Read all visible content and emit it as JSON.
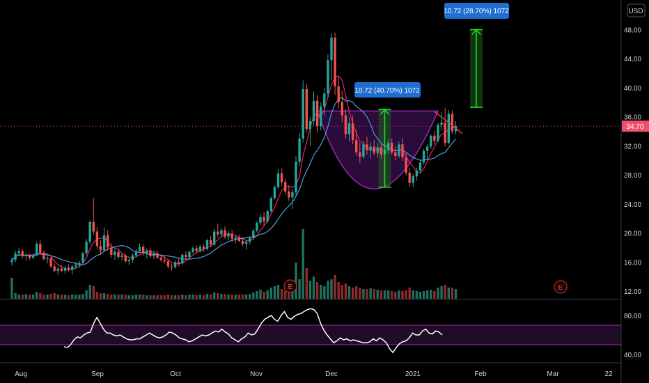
{
  "price_scale": {
    "currency": "USD",
    "ticks": [
      "12.00",
      "16.00",
      "20.00",
      "24.00",
      "28.00",
      "32.00",
      "36.00",
      "40.00",
      "44.00",
      "48.00"
    ]
  },
  "last_price": "34.70",
  "rsi_scale": {
    "ticks": [
      "40.00",
      "80.00"
    ]
  },
  "time_labels": [
    "Aug",
    "Sep",
    "Oct",
    "Nov",
    "Dec",
    "2021",
    "Feb",
    "Mar",
    "22"
  ],
  "measure_1": "10.72 (40.70%) 1072",
  "measure_2": "10.72 (28.70%) 1072",
  "earnings_label": "E",
  "colors": {
    "up": "#26a69a",
    "down": "#ef5350",
    "ma_fast": "#e91e63",
    "ma_slow": "#4aa3df",
    "rsi": "#ffffff",
    "rsi_band": "#9c27b0",
    "badge": "#1e6fd0",
    "arrow": "#19e619",
    "cup": "#7b1fa2",
    "label_bg": "#f0506e"
  },
  "chart_data": [
    {
      "type": "candlestick",
      "ylim": [
        11,
        50
      ],
      "ohlc": [
        [
          16.0,
          16.6,
          15.5,
          16.3
        ],
        [
          16.3,
          17.6,
          16.0,
          17.2
        ],
        [
          17.2,
          18.0,
          16.8,
          17.5
        ],
        [
          17.5,
          17.8,
          16.5,
          16.8
        ],
        [
          16.8,
          17.3,
          16.2,
          16.9
        ],
        [
          16.9,
          17.1,
          16.3,
          16.6
        ],
        [
          16.6,
          17.2,
          16.4,
          16.9
        ],
        [
          16.9,
          18.8,
          16.8,
          18.5
        ],
        [
          18.5,
          19.0,
          17.0,
          17.3
        ],
        [
          17.3,
          17.6,
          16.2,
          16.4
        ],
        [
          16.4,
          17.0,
          15.8,
          16.5
        ],
        [
          16.5,
          16.7,
          15.2,
          15.4
        ],
        [
          15.4,
          15.8,
          14.6,
          14.8
        ],
        [
          14.8,
          15.4,
          14.2,
          15.1
        ],
        [
          15.1,
          15.6,
          14.6,
          14.8
        ],
        [
          14.8,
          15.5,
          14.4,
          15.2
        ],
        [
          15.2,
          15.7,
          14.7,
          14.9
        ],
        [
          14.9,
          15.6,
          14.3,
          15.4
        ],
        [
          15.4,
          16.0,
          15.0,
          15.6
        ],
        [
          15.6,
          16.2,
          15.2,
          15.9
        ],
        [
          15.9,
          17.4,
          15.8,
          17.2
        ],
        [
          17.2,
          19.2,
          16.9,
          18.8
        ],
        [
          18.8,
          21.8,
          18.4,
          21.5
        ],
        [
          21.5,
          24.8,
          19.8,
          20.2
        ],
        [
          20.2,
          20.8,
          17.8,
          18.2
        ],
        [
          18.2,
          19.0,
          17.0,
          17.6
        ],
        [
          17.6,
          20.8,
          17.4,
          19.7
        ],
        [
          19.7,
          20.4,
          17.6,
          18.0
        ],
        [
          18.0,
          18.6,
          16.6,
          17.0
        ],
        [
          17.0,
          17.8,
          16.3,
          17.4
        ],
        [
          17.4,
          17.7,
          16.4,
          16.7
        ],
        [
          16.7,
          17.3,
          16.2,
          16.9
        ],
        [
          16.9,
          17.2,
          15.9,
          16.1
        ],
        [
          16.1,
          16.6,
          15.6,
          16.3
        ],
        [
          16.3,
          17.2,
          15.9,
          16.9
        ],
        [
          16.9,
          17.8,
          16.6,
          17.5
        ],
        [
          17.5,
          18.6,
          17.2,
          18.1
        ],
        [
          18.1,
          18.5,
          16.9,
          17.2
        ],
        [
          17.2,
          17.9,
          16.5,
          17.6
        ],
        [
          17.6,
          17.9,
          16.6,
          16.8
        ],
        [
          16.8,
          17.5,
          16.4,
          17.2
        ],
        [
          17.2,
          17.6,
          16.4,
          16.6
        ],
        [
          16.6,
          17.0,
          16.0,
          16.3
        ],
        [
          16.3,
          16.8,
          15.8,
          16.1
        ],
        [
          16.1,
          16.4,
          15.1,
          15.4
        ],
        [
          15.4,
          15.8,
          14.8,
          15.3
        ],
        [
          15.3,
          16.2,
          15.1,
          16.0
        ],
        [
          16.0,
          16.6,
          15.4,
          15.8
        ],
        [
          15.8,
          17.2,
          15.6,
          17.0
        ],
        [
          17.0,
          17.5,
          16.3,
          16.7
        ],
        [
          16.7,
          17.6,
          16.5,
          17.4
        ],
        [
          17.4,
          18.2,
          17.1,
          17.9
        ],
        [
          17.9,
          18.3,
          17.2,
          17.5
        ],
        [
          17.5,
          18.4,
          17.3,
          18.1
        ],
        [
          18.1,
          18.5,
          17.4,
          17.8
        ],
        [
          17.8,
          19.2,
          17.6,
          19.0
        ],
        [
          19.0,
          19.6,
          18.1,
          18.4
        ],
        [
          18.4,
          20.6,
          18.2,
          20.2
        ],
        [
          20.2,
          21.3,
          19.4,
          19.8
        ],
        [
          19.8,
          20.7,
          19.4,
          20.4
        ],
        [
          20.4,
          20.9,
          19.2,
          19.5
        ],
        [
          19.5,
          20.3,
          19.0,
          19.9
        ],
        [
          19.9,
          20.4,
          18.8,
          19.2
        ],
        [
          19.2,
          19.7,
          18.6,
          19.4
        ],
        [
          19.4,
          19.8,
          18.7,
          18.9
        ],
        [
          18.9,
          19.4,
          18.2,
          18.5
        ],
        [
          18.5,
          19.0,
          17.7,
          18.8
        ],
        [
          18.8,
          19.6,
          18.4,
          19.3
        ],
        [
          19.3,
          20.6,
          19.1,
          20.3
        ],
        [
          20.3,
          21.6,
          20.1,
          21.4
        ],
        [
          21.4,
          22.6,
          21.1,
          22.2
        ],
        [
          22.2,
          22.9,
          21.0,
          21.6
        ],
        [
          21.6,
          23.2,
          21.4,
          23.0
        ],
        [
          23.0,
          25.0,
          22.8,
          24.8
        ],
        [
          24.8,
          26.6,
          24.6,
          26.3
        ],
        [
          26.3,
          28.8,
          26.0,
          28.2
        ],
        [
          28.2,
          28.9,
          26.4,
          27.0
        ],
        [
          27.0,
          27.5,
          25.3,
          25.7
        ],
        [
          25.7,
          26.6,
          24.4,
          24.9
        ],
        [
          24.9,
          26.1,
          23.3,
          25.6
        ],
        [
          25.6,
          30.6,
          25.2,
          29.8
        ],
        [
          29.8,
          33.8,
          29.2,
          33.0
        ],
        [
          33.0,
          41.0,
          32.5,
          39.8
        ],
        [
          39.8,
          40.5,
          33.8,
          34.3
        ],
        [
          34.3,
          36.0,
          32.0,
          35.4
        ],
        [
          35.4,
          39.5,
          34.8,
          38.2
        ],
        [
          38.2,
          39.0,
          33.8,
          34.7
        ],
        [
          34.7,
          38.0,
          34.1,
          37.4
        ],
        [
          37.4,
          40.0,
          36.1,
          39.2
        ],
        [
          39.2,
          44.6,
          38.6,
          43.8
        ],
        [
          43.8,
          47.5,
          41.0,
          46.9
        ],
        [
          46.9,
          47.6,
          39.0,
          40.2
        ],
        [
          40.2,
          41.5,
          37.1,
          38.0
        ],
        [
          38.0,
          39.6,
          35.3,
          36.2
        ],
        [
          36.2,
          37.1,
          33.0,
          33.6
        ],
        [
          33.6,
          35.9,
          32.6,
          35.1
        ],
        [
          35.1,
          36.2,
          32.2,
          32.8
        ],
        [
          32.8,
          34.1,
          30.6,
          31.1
        ],
        [
          31.1,
          32.4,
          29.6,
          30.5
        ],
        [
          30.5,
          32.7,
          30.2,
          32.2
        ],
        [
          32.2,
          33.2,
          30.8,
          31.4
        ],
        [
          31.4,
          32.5,
          30.3,
          31.9
        ],
        [
          31.9,
          32.8,
          30.7,
          31.0
        ],
        [
          31.0,
          32.4,
          30.4,
          31.8
        ],
        [
          31.8,
          32.2,
          30.2,
          30.8
        ],
        [
          30.8,
          31.9,
          30.0,
          31.4
        ],
        [
          31.4,
          32.9,
          30.9,
          32.4
        ],
        [
          32.4,
          33.0,
          30.8,
          31.1
        ],
        [
          31.1,
          32.0,
          30.0,
          30.6
        ],
        [
          30.6,
          32.6,
          30.3,
          32.2
        ],
        [
          32.2,
          33.1,
          29.9,
          30.4
        ],
        [
          30.4,
          31.0,
          27.9,
          28.3
        ],
        [
          28.3,
          29.0,
          26.4,
          26.9
        ],
        [
          26.9,
          28.1,
          26.3,
          27.8
        ],
        [
          27.8,
          29.0,
          27.2,
          28.6
        ],
        [
          28.6,
          30.1,
          28.2,
          29.7
        ],
        [
          29.7,
          31.6,
          29.4,
          31.3
        ],
        [
          31.3,
          32.2,
          30.1,
          31.9
        ],
        [
          31.9,
          33.6,
          31.6,
          33.4
        ],
        [
          33.4,
          34.1,
          32.2,
          32.7
        ],
        [
          32.7,
          35.2,
          32.5,
          34.9
        ],
        [
          34.9,
          36.6,
          34.1,
          35.2
        ],
        [
          35.2,
          37.2,
          31.9,
          32.4
        ],
        [
          32.4,
          36.9,
          32.2,
          36.4
        ],
        [
          36.4,
          36.9,
          33.6,
          34.0
        ],
        [
          34.0,
          35.4,
          33.6,
          34.7
        ]
      ],
      "volume": [
        1.5,
        0.4,
        0.3,
        0.3,
        0.35,
        0.3,
        0.3,
        0.5,
        0.4,
        0.3,
        0.3,
        0.35,
        0.4,
        0.3,
        0.3,
        0.3,
        0.25,
        0.3,
        0.3,
        0.3,
        0.35,
        0.6,
        1.0,
        0.9,
        0.5,
        0.4,
        0.4,
        0.35,
        0.3,
        0.3,
        0.3,
        0.3,
        0.3,
        0.25,
        0.25,
        0.3,
        0.3,
        0.3,
        0.25,
        0.25,
        0.25,
        0.25,
        0.25,
        0.25,
        0.3,
        0.25,
        0.25,
        0.25,
        0.3,
        0.25,
        0.3,
        0.3,
        0.25,
        0.3,
        0.25,
        0.35,
        0.3,
        0.45,
        0.4,
        0.35,
        0.35,
        0.3,
        0.3,
        0.3,
        0.3,
        0.3,
        0.3,
        0.35,
        0.45,
        0.55,
        0.65,
        0.5,
        0.6,
        0.8,
        0.9,
        1.0,
        0.7,
        0.55,
        0.6,
        0.7,
        2.6,
        1.4,
        5.0,
        2.2,
        1.3,
        1.6,
        1.2,
        1.0,
        0.9,
        1.3,
        1.4,
        1.7,
        1.2,
        1.0,
        1.1,
        0.9,
        0.8,
        0.9,
        0.8,
        0.7,
        0.7,
        0.75,
        0.7,
        0.65,
        0.6,
        0.6,
        0.6,
        0.55,
        0.5,
        0.6,
        0.55,
        0.6,
        0.8,
        0.6,
        0.55,
        0.5,
        0.55,
        0.6,
        0.65,
        0.55,
        0.8,
        0.9,
        1.0,
        0.8,
        0.8,
        0.7
      ],
      "x_ticks": [
        "Aug",
        "Sep",
        "Oct",
        "Nov",
        "Dec",
        "2021",
        "Feb",
        "Mar",
        "22"
      ],
      "y_ticks": [
        12,
        16,
        20,
        24,
        28,
        32,
        36,
        40,
        44,
        48
      ],
      "grid": false
    },
    {
      "type": "line",
      "ylim": [
        35,
        92
      ],
      "y_ticks": [
        40,
        80
      ],
      "band": [
        50,
        70
      ],
      "values": [
        48,
        47,
        50,
        55,
        58,
        57,
        60,
        62,
        63,
        72,
        78,
        72,
        66,
        62,
        62,
        60,
        59,
        60,
        58,
        56,
        55,
        55,
        56,
        56,
        58,
        60,
        62,
        60,
        58,
        57,
        58,
        60,
        63,
        62,
        60,
        57,
        56,
        55,
        53,
        54,
        56,
        58,
        60,
        59,
        60,
        62,
        64,
        63,
        66,
        63,
        61,
        57,
        55,
        53,
        56,
        58,
        62,
        60,
        61,
        66,
        72,
        76,
        78,
        80,
        76,
        74,
        80,
        84,
        78,
        76,
        79,
        81,
        82,
        84,
        86,
        87,
        86,
        82,
        72,
        65,
        60,
        56,
        52,
        54,
        57,
        55,
        56,
        54,
        55,
        54,
        53,
        52,
        52,
        53,
        56,
        54,
        57,
        55,
        52,
        46,
        42,
        47,
        51,
        53,
        54,
        57,
        62,
        60,
        60,
        64,
        66,
        62,
        61,
        64,
        63,
        60
      ]
    }
  ]
}
